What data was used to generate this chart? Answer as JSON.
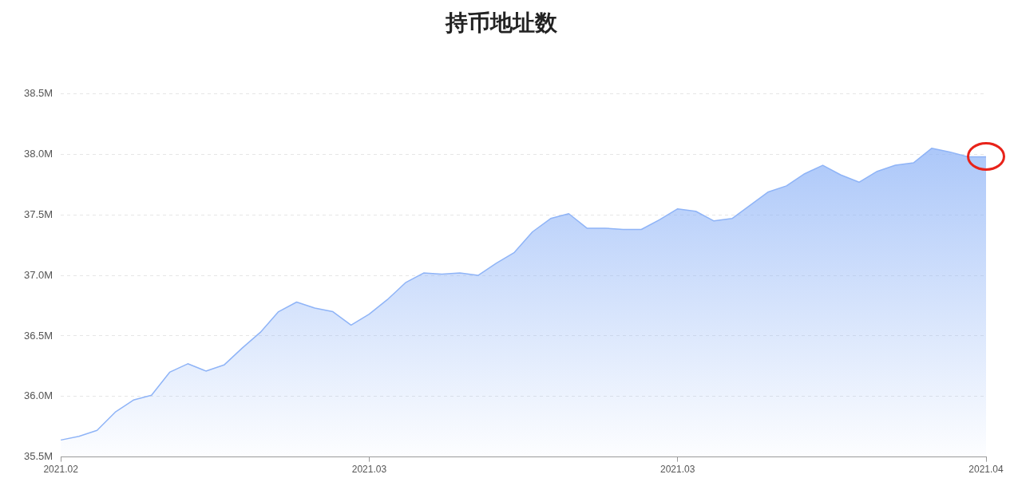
{
  "chart_data": {
    "type": "area",
    "title": "持币地址数",
    "categories": [
      "2021.02",
      null,
      null,
      null,
      null,
      null,
      null,
      null,
      null,
      null,
      null,
      null,
      null,
      null,
      null,
      null,
      null,
      "2021.03",
      null,
      null,
      null,
      null,
      null,
      null,
      null,
      null,
      null,
      null,
      null,
      null,
      null,
      null,
      null,
      null,
      "2021.03",
      null,
      null,
      null,
      null,
      null,
      null,
      null,
      null,
      null,
      null,
      null,
      null,
      null,
      null,
      null,
      null,
      "2021.04"
    ],
    "series": [
      {
        "color": "#8fb4f7",
        "values": [
          35.64,
          35.67,
          35.72,
          35.87,
          35.97,
          36.01,
          36.2,
          36.27,
          36.21,
          36.26,
          36.4,
          36.53,
          36.7,
          36.78,
          36.73,
          36.7,
          36.59,
          36.68,
          36.8,
          36.94,
          37.02,
          37.01,
          37.02,
          37.0,
          37.1,
          37.19,
          37.36,
          37.47,
          37.51,
          37.39,
          37.39,
          37.38,
          37.38,
          37.46,
          37.55,
          37.53,
          37.45,
          37.47,
          37.58,
          37.69,
          37.74,
          37.84,
          37.91,
          37.83,
          37.77,
          37.86,
          37.91,
          37.93,
          38.05,
          38.02,
          37.98,
          37.98
        ]
      }
    ],
    "ylim": [
      35.5,
      38.5
    ],
    "yticks": [
      {
        "value": 35.5,
        "label": "35.5M"
      },
      {
        "value": 36,
        "label": "36.0M"
      },
      {
        "value": 36.5,
        "label": "36.5M"
      },
      {
        "value": 37,
        "label": "37.0M"
      },
      {
        "value": 37.5,
        "label": "37.5M"
      },
      {
        "value": 38,
        "label": "38.0M"
      },
      {
        "value": 38.5,
        "label": "38.5M"
      }
    ],
    "grid": "y",
    "legend": false,
    "marker": "none"
  }
}
